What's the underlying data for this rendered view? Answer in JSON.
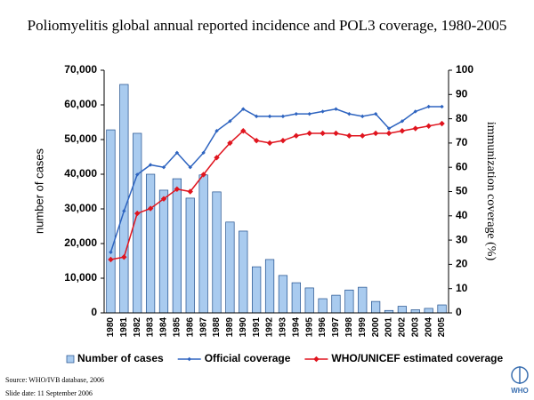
{
  "chart_data": {
    "type": "bar",
    "title": "Poliomyelitis global annual reported incidence and POL3 coverage, 1980-2005",
    "y_label": "number of cases",
    "y2_label": "immunization coverage (%)",
    "categories": [
      "1980",
      "1981",
      "1982",
      "1983",
      "1984",
      "1985",
      "1986",
      "1987",
      "1988",
      "1989",
      "1990",
      "1991",
      "1992",
      "1993",
      "1994",
      "1995",
      "1996",
      "1997",
      "1998",
      "1999",
      "2000",
      "2001",
      "2002",
      "2003",
      "2004",
      "2005"
    ],
    "series": [
      {
        "name": "Number of cases",
        "type": "bar",
        "color": "#a9cbef",
        "axis": "y",
        "values": [
          52800,
          65900,
          51800,
          40000,
          35400,
          38700,
          33100,
          39800,
          34900,
          26200,
          23600,
          13300,
          15400,
          10800,
          8700,
          7200,
          4100,
          5100,
          6600,
          7400,
          3300,
          700,
          1900,
          900,
          1300,
          2300
        ]
      },
      {
        "name": "Official coverage",
        "type": "line",
        "color": "#2e64c0",
        "axis": "y2",
        "values": [
          25,
          42,
          57,
          61,
          60,
          66,
          60,
          66,
          75,
          79,
          84,
          81,
          81,
          81,
          82,
          82,
          83,
          84,
          82,
          81,
          82,
          76,
          79,
          83,
          85,
          85
        ]
      },
      {
        "name": "WHO/UNICEF estimated coverage",
        "type": "line",
        "color": "#e0141e",
        "axis": "y2",
        "values": [
          22,
          23,
          41,
          43,
          47,
          51,
          50,
          57,
          64,
          70,
          75,
          71,
          70,
          71,
          73,
          74,
          74,
          74,
          73,
          73,
          74,
          74,
          75,
          76,
          77,
          78
        ]
      }
    ],
    "ylim": [
      0,
      70000
    ],
    "yticks": [
      0,
      {
        "value": 10000,
        "label": "10,000"
      },
      {
        "value": 20000,
        "label": "20,000"
      },
      {
        "value": 30000,
        "label": "30,000"
      },
      {
        "value": 40000,
        "label": "40,000"
      },
      {
        "value": 50000,
        "label": "50,000"
      },
      {
        "value": 60000,
        "label": "60,000"
      },
      {
        "value": 70000,
        "label": "70,000"
      }
    ],
    "y2lim": [
      0,
      100
    ],
    "y2ticks": [
      0,
      10,
      20,
      30,
      40,
      50,
      60,
      70,
      80,
      90,
      100
    ],
    "grid": false,
    "legend": "bottom",
    "source": "Source: WHO/IVB database, 2006",
    "slide_date": "Slide date: 11 September 2006",
    "logo": "WHO"
  }
}
